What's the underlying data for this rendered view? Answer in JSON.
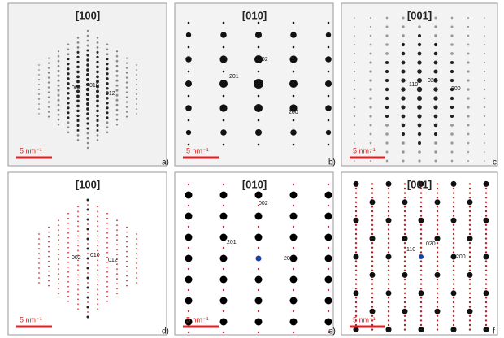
{
  "panels": [
    {
      "zone": "[100]",
      "scale": "5 nm⁻¹",
      "letter": "a)",
      "labels": [
        "002",
        "010",
        "012"
      ]
    },
    {
      "zone": "[010]",
      "scale": "5 nm⁻¹",
      "letter": "b)",
      "labels": [
        "002",
        "201",
        "200"
      ]
    },
    {
      "zone": "[001]",
      "scale": "5 nm⁻¹",
      "letter": "c",
      "labels": [
        "020",
        "110",
        "200"
      ]
    },
    {
      "zone": "[100]",
      "scale": "5 nm⁻¹",
      "letter": "d)",
      "labels": [
        "002",
        "010",
        "012"
      ]
    },
    {
      "zone": "[010]",
      "scale": "5 nm⁻¹",
      "letter": "e)",
      "labels": [
        "002",
        "201",
        "200"
      ]
    },
    {
      "zone": "[001]",
      "scale": "5 nm⁻¹",
      "letter": "f",
      "labels": [
        "020",
        "110",
        "200"
      ]
    }
  ]
}
